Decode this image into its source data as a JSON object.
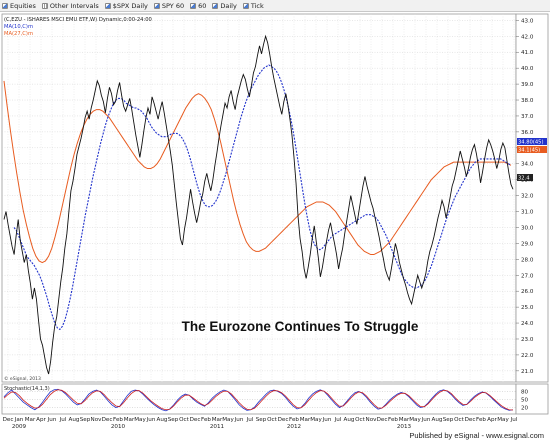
{
  "toolbar": {
    "items": [
      {
        "label": "Equities",
        "icon": "chart-icon"
      },
      {
        "label": "Other Intervals",
        "icon": "grid-icon"
      },
      {
        "label": "$SPX Daily",
        "icon": "chart-icon"
      },
      {
        "label": "SPY 60",
        "icon": "chart-icon"
      },
      {
        "label": "60",
        "icon": "chart-icon"
      },
      {
        "label": "Daily",
        "icon": "chart-icon"
      },
      {
        "label": "Tick",
        "icon": "chart-icon"
      }
    ]
  },
  "legend": {
    "header": "(C,EZU - ISHARES MSCI EMU ETF,W) Dynamic,0:00-24:00",
    "ma10": "MA(10,C)m",
    "ma27": "MA(27,C)m",
    "ma10_color": "#2233cc",
    "ma27_color": "#e85c20"
  },
  "annotation": "The Eurozone Continues To Struggle",
  "copyright": "© eSignal, 2013",
  "footer": "Published by eSignal - www.esignal.com",
  "stochastic": {
    "label": "Stochastic(14,1,3)",
    "ticks": [
      "80",
      "50",
      "20"
    ]
  },
  "price_tags": {
    "upper": "34.80(45)",
    "lower": "34.1(45)",
    "last": "32.4"
  },
  "chart_data": {
    "type": "line",
    "x_axis": {
      "month_labels": [
        "Dec",
        "Jan",
        "Mar",
        "Apr",
        "Jun",
        "Jul",
        "Aug",
        "Sep",
        "Nov",
        "Dec",
        "Feb",
        "Mar",
        "May",
        "Jun",
        "Aug",
        "Sep",
        "Oct",
        "Dec",
        "Feb",
        "Mar",
        "May",
        "Jun",
        "Jul",
        "Sep",
        "Oct",
        "Dec",
        "Feb",
        "Mar",
        "May",
        "Jun",
        "Jul",
        "Aug",
        "Oct",
        "Nov",
        "Dec",
        "Feb",
        "Mar",
        "May",
        "Jun",
        "Aug",
        "Sep",
        "Oct",
        "Dec",
        "Feb",
        "Apr",
        "May",
        "Jul"
      ],
      "year_labels": [
        "2009",
        "2010",
        "2011",
        "2012",
        "2013"
      ]
    },
    "y_axis": {
      "ticks": [
        21.0,
        22.0,
        23.0,
        24.0,
        25.0,
        26.0,
        27.0,
        28.0,
        29.0,
        30.0,
        31.0,
        32.0,
        33.0,
        34.0,
        35.0,
        36.0,
        37.0,
        38.0,
        39.0,
        40.0,
        41.0,
        42.0,
        43.0
      ],
      "range": [
        20.3,
        43.4
      ]
    },
    "price_series": {
      "name": "EZU",
      "color": "#111111",
      "values": [
        30.5,
        31,
        30.2,
        29.5,
        28.8,
        28.3,
        29.5,
        30.5,
        29.2,
        28.5,
        27.8,
        28.3,
        27.3,
        26.5,
        25.5,
        26.2,
        25.5,
        24.2,
        23,
        22.6,
        21.9,
        21.2,
        20.8,
        21.6,
        22.8,
        23.8,
        24.4,
        25.5,
        26.6,
        27.5,
        28.7,
        29.6,
        31,
        32.3,
        32.9,
        33.7,
        34.6,
        35.1,
        35.6,
        36.2,
        36.9,
        37.3,
        36.8,
        37.5,
        38,
        38.6,
        39.2,
        38.9,
        38.3,
        37.9,
        37.2,
        38.1,
        38.8,
        38.4,
        37.7,
        37.9,
        38.6,
        39.1,
        38.3,
        37.6,
        37.3,
        37.7,
        38.1,
        37.4,
        36.6,
        35.8,
        35.1,
        34.4,
        35.2,
        36.1,
        36.9,
        37.5,
        37.1,
        38.2,
        37.8,
        37.3,
        36.8,
        37.4,
        37.9,
        37.2,
        36.4,
        35.6,
        34.8,
        33.9,
        32.7,
        31.5,
        30.4,
        29.3,
        28.9,
        29.9,
        30.6,
        31.5,
        32.4,
        31.6,
        30.9,
        30.3,
        30.9,
        31.6,
        32.1,
        32.9,
        33.4,
        32.8,
        32.3,
        33,
        33.9,
        34.7,
        35.6,
        36.4,
        37.1,
        37.8,
        37.5,
        38.2,
        38.6,
        37.9,
        37.4,
        38.2,
        38.7,
        39.2,
        39.6,
        39.3,
        38.7,
        38.2,
        38.9,
        39.7,
        40.1,
        40.8,
        41.4,
        40.9,
        41.5,
        42,
        41.6,
        40.9,
        40.1,
        39.4,
        38.8,
        38.2,
        37.6,
        37.1,
        37.9,
        38.4,
        37.7,
        36.8,
        35.8,
        34.4,
        32.8,
        30.7,
        29.3,
        28.5,
        27.4,
        26.8,
        27.5,
        28.3,
        29.3,
        30.1,
        29.1,
        28.1,
        26.9,
        27.5,
        28.3,
        29.1,
        29.8,
        30.3,
        29.6,
        29,
        28.3,
        27.4,
        28.1,
        28.7,
        29.6,
        30.4,
        31.2,
        32,
        31.4,
        30.8,
        30.2,
        31,
        31.8,
        32.6,
        33.2,
        32.6,
        32.1,
        31.6,
        31.2,
        30.6,
        30,
        29.4,
        28.7,
        28.1,
        27.4,
        27,
        26.7,
        27.4,
        28.2,
        29,
        28.5,
        27.8,
        27.3,
        26.8,
        26.4,
        25.9,
        25.5,
        25.2,
        25.8,
        26.4,
        27,
        26.6,
        26.2,
        26.6,
        27.1,
        27.9,
        28.5,
        28.9,
        29.4,
        30,
        30.6,
        31.1,
        31.7,
        31.3,
        30.6,
        31.2,
        31.9,
        32.6,
        33,
        33.6,
        34.2,
        34.8,
        34.3,
        33.8,
        33.2,
        33.7,
        34.4,
        34.9,
        35.2,
        34.6,
        33.8,
        32.8,
        33.5,
        34.3,
        35,
        35.5,
        35.2,
        34.8,
        34.3,
        33.7,
        34.2,
        34.9,
        35.3,
        35,
        34.2,
        33.4,
        32.7,
        32.4
      ]
    },
    "ma_series": [
      {
        "name": "MA(10,C)m",
        "color": "#2233cc",
        "dashed": true,
        "values": [
          30,
          29.8,
          29.4,
          29,
          28.6,
          28.2,
          28,
          27.8,
          27.6,
          27.3,
          27,
          26.6,
          26.1,
          25.6,
          25,
          24.5,
          24,
          23.7,
          23.6,
          23.8,
          24.2,
          24.8,
          25.5,
          26.3,
          27.2,
          28.1,
          29,
          29.9,
          30.8,
          31.6,
          32.4,
          33.2,
          33.9,
          34.6,
          35.3,
          35.9,
          36.5,
          37,
          37.4,
          37.8,
          38,
          38.1,
          38.1,
          38,
          37.8,
          37.7,
          37.6,
          37.5,
          37.5,
          37.4,
          37.3,
          37.1,
          36.9,
          36.6,
          36.3,
          36.1,
          35.9,
          35.8,
          35.7,
          35.7,
          35.7,
          35.8,
          35.9,
          35.9,
          35.9,
          35.8,
          35.6,
          35.3,
          34.9,
          34.4,
          33.8,
          33.2,
          32.6,
          32.1,
          31.7,
          31.4,
          31.3,
          31.3,
          31.4,
          31.6,
          31.9,
          32.3,
          32.8,
          33.3,
          33.9,
          34.5,
          35.1,
          35.7,
          36.3,
          36.9,
          37.4,
          37.9,
          38.3,
          38.7,
          39,
          39.3,
          39.6,
          39.8,
          40,
          40.1,
          40.2,
          40.1,
          40,
          39.8,
          39.5,
          39.1,
          38.6,
          38,
          37.3,
          36.5,
          35.6,
          34.6,
          33.6,
          32.6,
          31.6,
          30.7,
          29.9,
          29.3,
          28.9,
          28.7,
          28.6,
          28.7,
          28.9,
          29.1,
          29.3,
          29.5,
          29.6,
          29.7,
          29.8,
          29.9,
          30,
          30.1,
          30.2,
          30.3,
          30.4,
          30.5,
          30.6,
          30.7,
          30.8,
          30.8,
          30.8,
          30.7,
          30.6,
          30.4,
          30.1,
          29.8,
          29.5,
          29.1,
          28.7,
          28.3,
          27.9,
          27.5,
          27.1,
          26.8,
          26.6,
          26.4,
          26.3,
          26.2,
          26.2,
          26.3,
          26.4,
          26.6,
          26.9,
          27.3,
          27.7,
          28.2,
          28.7,
          29.2,
          29.7,
          30.2,
          30.7,
          31.1,
          31.5,
          31.9,
          32.2,
          32.5,
          32.8,
          33.1,
          33.4,
          33.7,
          33.9,
          34.1,
          34.2,
          34.3,
          34.3,
          34.3,
          34.3,
          34.3,
          34.3,
          34.3,
          34.3,
          34.3,
          34.2,
          34.1,
          34,
          33.9
        ]
      },
      {
        "name": "MA(27,C)m",
        "color": "#e85c20",
        "dashed": false,
        "values": [
          39.2,
          37.6,
          36.1,
          34.7,
          33.4,
          32.2,
          31.1,
          30.2,
          29.4,
          28.7,
          28.2,
          27.9,
          27.8,
          27.9,
          28.2,
          28.7,
          29.4,
          30.2,
          31.1,
          32,
          32.9,
          33.8,
          34.6,
          35.3,
          35.9,
          36.4,
          36.8,
          37.1,
          37.3,
          37.4,
          37.4,
          37.3,
          37.1,
          36.9,
          36.6,
          36.3,
          36,
          35.7,
          35.4,
          35.1,
          34.8,
          34.5,
          34.2,
          34,
          33.8,
          33.7,
          33.7,
          33.8,
          34,
          34.3,
          34.7,
          35.1,
          35.5,
          35.9,
          36.3,
          36.7,
          37.1,
          37.5,
          37.8,
          38.1,
          38.3,
          38.4,
          38.3,
          38.1,
          37.8,
          37.4,
          36.8,
          36.1,
          35.3,
          34.4,
          33.5,
          32.6,
          31.7,
          30.9,
          30.2,
          29.6,
          29.1,
          28.8,
          28.6,
          28.5,
          28.5,
          28.6,
          28.7,
          28.9,
          29.1,
          29.3,
          29.5,
          29.7,
          29.9,
          30.1,
          30.3,
          30.5,
          30.7,
          30.9,
          31.1,
          31.3,
          31.4,
          31.5,
          31.6,
          31.6,
          31.6,
          31.5,
          31.4,
          31.2,
          31,
          30.7,
          30.4,
          30.1,
          29.8,
          29.5,
          29.2,
          28.9,
          28.7,
          28.5,
          28.4,
          28.3,
          28.3,
          28.4,
          28.5,
          28.7,
          28.9,
          29.1,
          29.4,
          29.7,
          30,
          30.3,
          30.6,
          30.9,
          31.2,
          31.5,
          31.8,
          32.1,
          32.4,
          32.7,
          33,
          33.2,
          33.4,
          33.6,
          33.8,
          33.9,
          34,
          34.1,
          34.1,
          34.1,
          34.1,
          34.1,
          34.1,
          34.1,
          34.1,
          34.1,
          34.1,
          34.1,
          34.1,
          34.1,
          34.1,
          34.1,
          34.1,
          34.1,
          34,
          33.9
        ]
      }
    ],
    "stochastic_series": [
      {
        "name": "%K",
        "color": "#2233cc",
        "values": [
          60,
          75,
          85,
          70,
          55,
          40,
          30,
          20,
          12,
          22,
          40,
          60,
          78,
          86,
          88,
          82,
          70,
          55,
          40,
          30,
          35,
          52,
          70,
          80,
          85,
          78,
          62,
          45,
          30,
          20,
          25,
          45,
          65,
          80,
          85,
          82,
          70,
          55,
          42,
          30,
          20,
          12,
          8,
          15,
          30,
          48,
          62,
          70,
          66,
          52,
          40,
          32,
          25,
          38,
          55,
          68,
          78,
          85,
          80,
          65,
          48,
          30,
          18,
          10,
          12,
          22,
          40,
          55,
          70,
          82,
          85,
          80,
          72,
          58,
          40,
          25,
          15,
          20,
          35,
          55,
          70,
          80,
          86,
          80,
          65,
          48,
          32,
          20,
          28,
          45,
          62,
          75,
          80,
          72,
          58,
          40,
          25,
          14,
          18,
          32,
          48,
          60,
          70,
          76,
          72,
          60,
          45,
          30,
          20,
          24,
          38,
          55,
          70,
          82,
          86,
          80,
          68,
          52,
          38,
          28,
          32,
          48,
          62,
          72,
          78,
          74,
          62,
          48,
          35,
          22,
          15,
          10,
          12
        ]
      },
      {
        "name": "%D",
        "color": "#cc2222",
        "values": [
          55,
          68,
          78,
          76,
          64,
          48,
          36,
          26,
          18,
          20,
          32,
          50,
          68,
          80,
          86,
          84,
          75,
          62,
          48,
          36,
          34,
          46,
          62,
          75,
          82,
          80,
          68,
          52,
          38,
          26,
          24,
          38,
          56,
          72,
          82,
          83,
          74,
          60,
          46,
          35,
          25,
          16,
          12,
          14,
          26,
          42,
          56,
          66,
          66,
          56,
          45,
          35,
          28,
          34,
          48,
          62,
          73,
          81,
          80,
          70,
          54,
          38,
          24,
          14,
          12,
          18,
          32,
          48,
          63,
          76,
          83,
          82,
          75,
          63,
          47,
          31,
          20,
          19,
          30,
          47,
          63,
          75,
          83,
          81,
          70,
          54,
          38,
          25,
          26,
          40,
          56,
          70,
          78,
          75,
          63,
          46,
          31,
          19,
          18,
          28,
          42,
          55,
          66,
          73,
          73,
          64,
          50,
          36,
          24,
          23,
          34,
          50,
          65,
          77,
          84,
          82,
          72,
          57,
          43,
          32,
          31,
          43,
          57,
          68,
          76,
          75,
          65,
          52,
          39,
          27,
          18,
          12,
          11
        ]
      }
    ]
  }
}
